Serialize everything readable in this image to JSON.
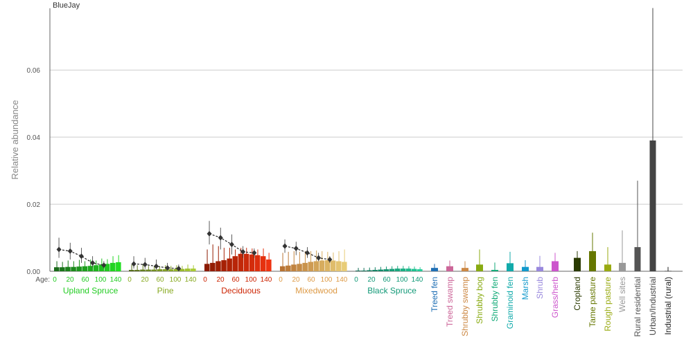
{
  "chart_data": {
    "type": "bar",
    "title": "BlueJay",
    "ylabel": "Relative abundance",
    "ylim": [
      0,
      0.078
    ],
    "yticks": [
      "0.00",
      "0.02",
      "0.04",
      "0.06"
    ],
    "grid": true,
    "age_label": "Age:",
    "age_ticks": [
      "0",
      "20",
      "60",
      "100",
      "140"
    ],
    "forest_groups": [
      {
        "name": "Upland Spruce",
        "label_color": "#22cc22",
        "bar_colors": [
          "#1a6b1a",
          "#22dd22"
        ],
        "values": [
          0.0012,
          0.0012,
          0.0013,
          0.0013,
          0.0014,
          0.0015,
          0.0016,
          0.0018,
          0.002,
          0.0022,
          0.0025,
          0.0027
        ],
        "upper": [
          0.003,
          0.0028,
          0.0032,
          0.003,
          0.0034,
          0.003,
          0.0035,
          0.0032,
          0.0038,
          0.0036,
          0.0045,
          0.0048
        ],
        "trend_x": [
          0,
          2,
          4,
          6,
          8
        ],
        "trend_y": [
          0.0065,
          0.006,
          0.0045,
          0.0025,
          0.0018
        ],
        "trend_hi": [
          0.01,
          0.0085,
          0.007,
          0.0045,
          0.003
        ],
        "trend_lo": [
          0.004,
          0.0035,
          0.0025,
          0.0012,
          0.0008
        ]
      },
      {
        "name": "Pine",
        "label_color": "#88aa22",
        "bar_colors": [
          "#556b1a",
          "#aacc33"
        ],
        "values": [
          0.0004,
          0.0004,
          0.0005,
          0.0005,
          0.0005,
          0.0006,
          0.0006,
          0.0006,
          0.0007,
          0.0007,
          0.0008,
          0.0008
        ],
        "upper": [
          0.002,
          0.0018,
          0.002,
          0.0016,
          0.0016,
          0.0015,
          0.0018,
          0.0016,
          0.0018,
          0.0016,
          0.002,
          0.0018
        ],
        "trend_x": [
          0,
          2,
          4,
          6,
          8
        ],
        "trend_y": [
          0.0022,
          0.002,
          0.0015,
          0.001,
          0.0008
        ],
        "trend_hi": [
          0.0045,
          0.004,
          0.0035,
          0.0025,
          0.002
        ],
        "trend_lo": [
          0.0008,
          0.0007,
          0.0005,
          0.0003,
          0.0002
        ]
      },
      {
        "name": "Deciduous",
        "label_color": "#cc2200",
        "bar_colors": [
          "#8b1a00",
          "#ee3311"
        ],
        "values": [
          0.0022,
          0.0025,
          0.003,
          0.0033,
          0.0038,
          0.0045,
          0.0052,
          0.0052,
          0.005,
          0.0048,
          0.0045,
          0.0035
        ],
        "upper": [
          0.0065,
          0.008,
          0.0075,
          0.007,
          0.007,
          0.0065,
          0.007,
          0.007,
          0.0068,
          0.0065,
          0.0068,
          0.0055
        ],
        "trend_x": [
          0,
          2,
          4,
          6,
          8
        ],
        "trend_y": [
          0.0112,
          0.01,
          0.008,
          0.0058,
          0.0055
        ],
        "trend_hi": [
          0.015,
          0.013,
          0.011,
          0.0075,
          0.0068
        ],
        "trend_lo": [
          0.008,
          0.0065,
          0.005,
          0.004,
          0.004
        ]
      },
      {
        "name": "Mixedwood",
        "label_color": "#dd9944",
        "bar_colors": [
          "#b87333",
          "#e8cc77"
        ],
        "values": [
          0.0015,
          0.0017,
          0.002,
          0.0022,
          0.0025,
          0.0028,
          0.003,
          0.0032,
          0.0033,
          0.0032,
          0.003,
          0.0028
        ],
        "upper": [
          0.0055,
          0.0058,
          0.006,
          0.0058,
          0.006,
          0.006,
          0.0062,
          0.006,
          0.0058,
          0.0056,
          0.006,
          0.0065
        ],
        "trend_x": [
          0,
          2,
          4,
          6,
          8
        ],
        "trend_y": [
          0.0075,
          0.0068,
          0.0055,
          0.004,
          0.0035
        ],
        "trend_hi": [
          0.0095,
          0.0088,
          0.0072,
          0.0055,
          0.0045
        ],
        "trend_lo": [
          0.0055,
          0.0048,
          0.004,
          0.003,
          0.0025
        ]
      },
      {
        "name": "Black Spruce",
        "label_color": "#119977",
        "bar_colors": [
          "#0b6650",
          "#22cc99"
        ],
        "values": [
          0.0002,
          0.0002,
          0.0003,
          0.0004,
          0.0005,
          0.0006,
          0.0007,
          0.0008,
          0.0008,
          0.0008,
          0.0007,
          0.0006
        ],
        "upper": [
          0.001,
          0.001,
          0.0011,
          0.0012,
          0.0013,
          0.0014,
          0.0015,
          0.0016,
          0.0016,
          0.0015,
          0.0014,
          0.0012
        ],
        "trend_x": [],
        "trend_y": [],
        "trend_hi": [],
        "trend_lo": []
      }
    ],
    "other_categories": [
      {
        "name": "Treed fen",
        "color": "#1f6fb4",
        "value": 0.001,
        "upper": 0.0022,
        "lower": 0.0003
      },
      {
        "name": "Treed swamp",
        "color": "#cc6699",
        "value": 0.0015,
        "upper": 0.0032,
        "lower": 0.0005
      },
      {
        "name": "Shrubby swamp",
        "color": "#cc8844",
        "value": 0.001,
        "upper": 0.003,
        "lower": 0.0002
      },
      {
        "name": "Shrubby bog",
        "color": "#88aa11",
        "value": 0.002,
        "upper": 0.0065,
        "lower": 0.0004
      },
      {
        "name": "Shrubby fen",
        "color": "#11aa77",
        "value": 0.0004,
        "upper": 0.0026,
        "lower": 0.0001
      },
      {
        "name": "Graminoid fen",
        "color": "#11aaaa",
        "value": 0.0024,
        "upper": 0.0058,
        "lower": 0.0008
      },
      {
        "name": "Marsh",
        "color": "#1199cc",
        "value": 0.0013,
        "upper": 0.0033,
        "lower": 0.0004
      },
      {
        "name": "Shrub",
        "color": "#9988dd",
        "value": 0.0013,
        "upper": 0.0046,
        "lower": 0.0003
      },
      {
        "name": "Grass/herb",
        "color": "#cc55cc",
        "value": 0.003,
        "upper": 0.0055,
        "lower": 0.0012
      },
      {
        "name": "Cropland",
        "color": "#2a3a00",
        "value": 0.004,
        "upper": 0.006,
        "lower": 0.0025
      },
      {
        "name": "Tame pasture",
        "color": "#667700",
        "value": 0.006,
        "upper": 0.0115,
        "lower": 0.003
      },
      {
        "name": "Rough pasture",
        "color": "#99aa11",
        "value": 0.002,
        "upper": 0.0072,
        "lower": 0.0005
      },
      {
        "name": "Well sites",
        "color": "#999999",
        "value": 0.0025,
        "upper": 0.0122,
        "lower": 0.0003
      },
      {
        "name": "Rural residential",
        "color": "#555555",
        "value": 0.0072,
        "upper": 0.027,
        "lower": 0.001
      },
      {
        "name": "Urban/Industrial",
        "color": "#444444",
        "value": 0.039,
        "upper": 0.0785,
        "lower": 0.0045
      },
      {
        "name": "Industrial (rural)",
        "color": "#222222",
        "value": 0.0001,
        "upper": 0.0013,
        "lower": 0.0
      }
    ]
  }
}
